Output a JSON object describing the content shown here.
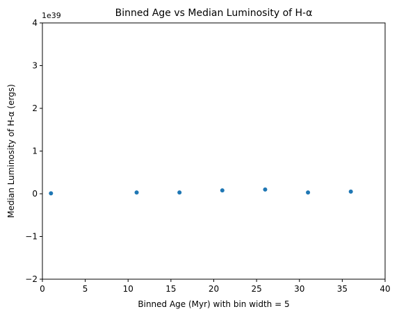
{
  "chart_data": {
    "type": "scatter",
    "title": "Binned Age vs Median Luminosity of H-α",
    "xlabel": "Binned Age (Myr) with bin width = 5",
    "ylabel": "Median Luminosity of H-α (ergs)",
    "y_offset_label": "1e39",
    "xlim": [
      0,
      40
    ],
    "ylim": [
      -2,
      4
    ],
    "x_ticks": [
      0,
      5,
      10,
      15,
      20,
      25,
      30,
      35,
      40
    ],
    "y_ticks": [
      -2,
      -1,
      0,
      1,
      2,
      3,
      4
    ],
    "x_tick_labels": [
      "0",
      "5",
      "10",
      "15",
      "20",
      "25",
      "30",
      "35",
      "40"
    ],
    "y_tick_labels": [
      "−2",
      "−1",
      "0",
      "1",
      "2",
      "3",
      "4"
    ],
    "grid": false,
    "legend": "none",
    "colors": {
      "marker": "#1f77b4"
    },
    "series": [
      {
        "x": [
          1,
          11,
          16,
          21,
          26,
          31,
          36
        ],
        "y": [
          0.01,
          0.03,
          0.03,
          0.08,
          0.1,
          0.03,
          0.05
        ]
      }
    ]
  }
}
